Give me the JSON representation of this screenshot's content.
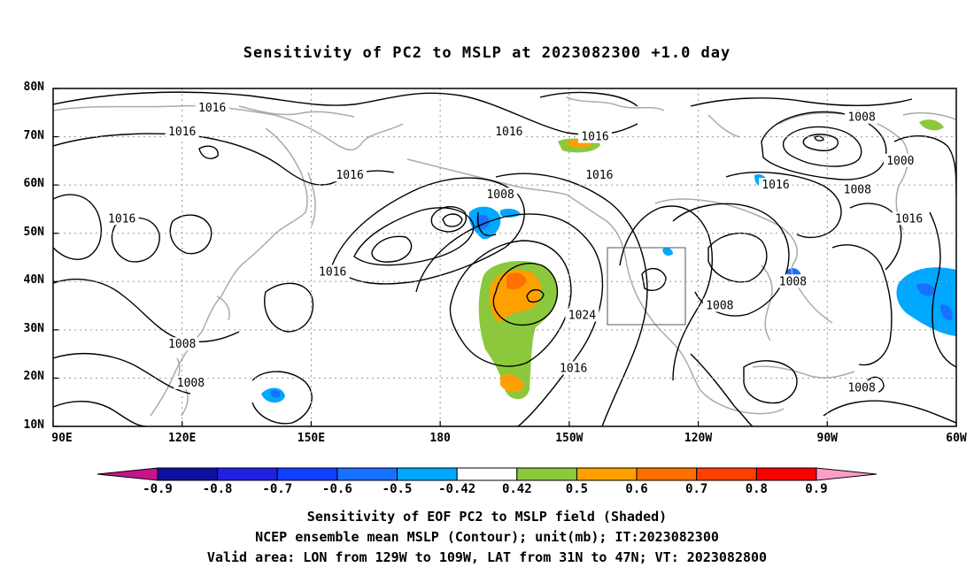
{
  "title": "Sensitivity of PC2 to MSLP at 2023082300 +1.0 day",
  "lat_labels": [
    "80N",
    "70N",
    "60N",
    "50N",
    "40N",
    "30N",
    "20N",
    "10N"
  ],
  "lon_labels": [
    "90E",
    "120E",
    "150E",
    "180",
    "150W",
    "120W",
    "90W",
    "60W"
  ],
  "contour_labels": [
    {
      "text": "1016",
      "lon": 127,
      "lat": 76
    },
    {
      "text": "1016",
      "lon": 120,
      "lat": 71
    },
    {
      "text": "1016",
      "lon": 106,
      "lat": 53
    },
    {
      "text": "1016",
      "lon": 159,
      "lat": 62
    },
    {
      "text": "1016",
      "lon": 155,
      "lat": 42
    },
    {
      "text": "1008",
      "lon": 120,
      "lat": 27
    },
    {
      "text": "1008",
      "lon": 122,
      "lat": 19
    },
    {
      "text": "1016",
      "lon": -164,
      "lat": 71
    },
    {
      "text": "1016",
      "lon": -144,
      "lat": 70
    },
    {
      "text": "1008",
      "lon": -166,
      "lat": 58
    },
    {
      "text": "1016",
      "lon": -143,
      "lat": 62
    },
    {
      "text": "1024",
      "lon": -147,
      "lat": 33
    },
    {
      "text": "1016",
      "lon": -149,
      "lat": 22
    },
    {
      "text": "1008",
      "lon": -115,
      "lat": 35
    },
    {
      "text": "1016",
      "lon": -102,
      "lat": 60
    },
    {
      "text": "1008",
      "lon": -98,
      "lat": 40
    },
    {
      "text": "1008",
      "lon": -82,
      "lat": 74
    },
    {
      "text": "1000",
      "lon": -73,
      "lat": 65
    },
    {
      "text": "1008",
      "lon": -83,
      "lat": 59
    },
    {
      "text": "1016",
      "lon": -71,
      "lat": 53
    },
    {
      "text": "1008",
      "lon": -82,
      "lat": 18
    }
  ],
  "colorbar": {
    "labels": [
      "-0.9",
      "-0.8",
      "-0.7",
      "-0.6",
      "-0.5",
      "-0.42",
      "0.42",
      "0.5",
      "0.6",
      "0.7",
      "0.8",
      "0.9"
    ],
    "colors": [
      "#1010a0",
      "#2020e0",
      "#1040ff",
      "#1870ff",
      "#00a8ff",
      "#ffffff",
      "#8cc83c",
      "#ffa000",
      "#ff7000",
      "#ff4000",
      "#ff0000"
    ],
    "under_color": "#c8148c",
    "over_color": "#ff9cc8"
  },
  "footer": {
    "line1": "Sensitivity of EOF PC2 to MSLP field (Shaded)",
    "line2": "NCEP ensemble mean MSLP (Contour); unit(mb); IT:2023082300",
    "line3": "Valid area: LON from 129W to 109W, LAT from 31N to 47N; VT: 2023082800"
  }
}
